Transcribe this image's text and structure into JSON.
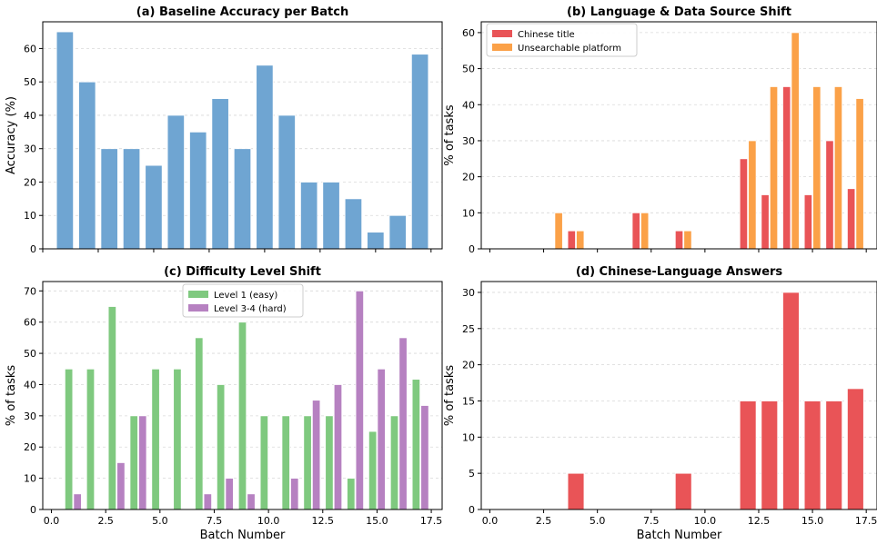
{
  "chart_data": [
    {
      "type": "bar",
      "title": "(a) Baseline Accuracy per Batch",
      "xlabel": "",
      "ylabel": "Accuracy (%)",
      "x": [
        1,
        2,
        3,
        4,
        5,
        6,
        7,
        8,
        9,
        10,
        11,
        12,
        13,
        14,
        15,
        16,
        17
      ],
      "series": [
        {
          "color": "#6fa5d2",
          "values": [
            65,
            50,
            30,
            30,
            25,
            40,
            35,
            45,
            30,
            55,
            40,
            20,
            20,
            15,
            5,
            10,
            58.3
          ]
        }
      ],
      "xlim": [
        0,
        18
      ],
      "ylim": [
        0,
        68
      ],
      "yticks": [
        0,
        10,
        20,
        30,
        40,
        50,
        60
      ],
      "xticks": [],
      "grid": "y-dashed"
    },
    {
      "type": "bar",
      "title": "(b) Language & Data Source Shift",
      "xlabel": "",
      "ylabel": "% of tasks",
      "x": [
        1,
        2,
        3,
        4,
        5,
        6,
        7,
        8,
        9,
        10,
        11,
        12,
        13,
        14,
        15,
        16,
        17
      ],
      "series": [
        {
          "name": "Chinese title",
          "color": "#e95457",
          "values": [
            0,
            0,
            0,
            5,
            0,
            0,
            10,
            0,
            5,
            0,
            0,
            25,
            15,
            45,
            15,
            30,
            16.7
          ]
        },
        {
          "name": "Unsearchable platform",
          "color": "#fba148",
          "values": [
            0,
            0,
            10,
            5,
            0,
            0,
            10,
            0,
            5,
            0,
            0,
            30,
            45,
            60,
            45,
            45,
            41.7
          ]
        }
      ],
      "xlim": [
        -0.4,
        18
      ],
      "ylim": [
        0,
        63
      ],
      "yticks": [
        0,
        10,
        20,
        30,
        40,
        50,
        60
      ],
      "xticks": [],
      "legend": "top-left",
      "grid": "y-dashed"
    },
    {
      "type": "bar",
      "title": "(c) Difficulty Level Shift",
      "xlabel": "Batch Number",
      "ylabel": "% of tasks",
      "x": [
        1,
        2,
        3,
        4,
        5,
        6,
        7,
        8,
        9,
        10,
        11,
        12,
        13,
        14,
        15,
        16,
        17
      ],
      "series": [
        {
          "name": "Level 1 (easy)",
          "color": "#7fc97f",
          "values": [
            45,
            45,
            65,
            30,
            45,
            45,
            55,
            40,
            60,
            30,
            30,
            30,
            30,
            10,
            25,
            30,
            41.7
          ]
        },
        {
          "name": "Level 3-4 (hard)",
          "color": "#b681c1",
          "values": [
            5,
            0,
            15,
            30,
            0,
            0,
            5,
            10,
            5,
            0,
            10,
            35,
            40,
            70,
            45,
            55,
            33.3
          ]
        }
      ],
      "xlim": [
        -0.4,
        18
      ],
      "ylim": [
        0,
        73
      ],
      "yticks": [
        0,
        10,
        20,
        30,
        40,
        50,
        60,
        70
      ],
      "xticks": [
        "0.0",
        "2.5",
        "5.0",
        "7.5",
        "10.0",
        "12.5",
        "15.0",
        "17.5"
      ],
      "legend": "top-center",
      "grid": "y-dashed"
    },
    {
      "type": "bar",
      "title": "(d) Chinese-Language Answers",
      "xlabel": "Batch Number",
      "ylabel": "% of tasks",
      "x": [
        1,
        2,
        3,
        4,
        5,
        6,
        7,
        8,
        9,
        10,
        11,
        12,
        13,
        14,
        15,
        16,
        17
      ],
      "series": [
        {
          "color": "#e95457",
          "values": [
            0,
            0,
            0,
            5,
            0,
            0,
            0,
            0,
            5,
            0,
            0,
            15,
            15,
            30,
            15,
            15,
            16.7
          ]
        }
      ],
      "xlim": [
        -0.4,
        18
      ],
      "ylim": [
        0,
        31.5
      ],
      "yticks": [
        0,
        5,
        10,
        15,
        20,
        25,
        30
      ],
      "xticks": [
        "0.0",
        "2.5",
        "5.0",
        "7.5",
        "10.0",
        "12.5",
        "15.0",
        "17.5"
      ],
      "grid": "y-dashed"
    }
  ]
}
